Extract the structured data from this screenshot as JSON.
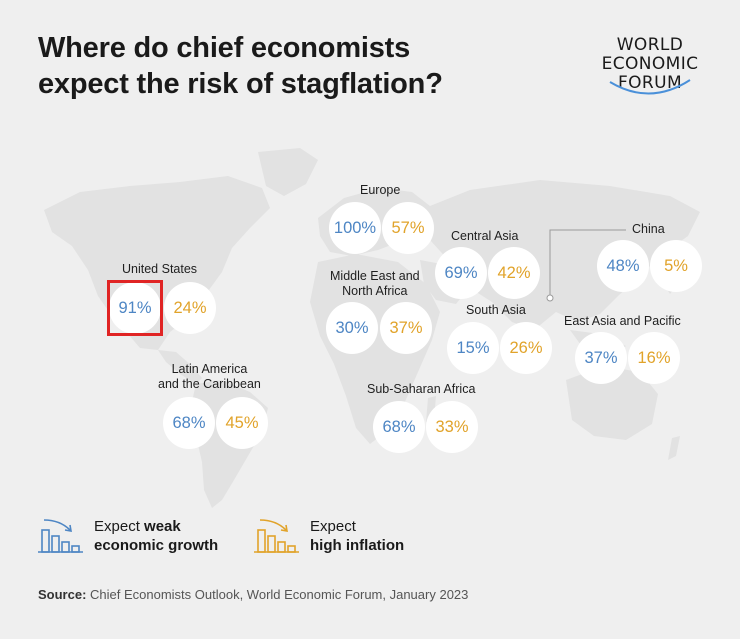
{
  "title": {
    "line1": "Where do chief economists",
    "line2": "expect the risk of stagflation?"
  },
  "logo": {
    "line1": "WORLD",
    "line2": "ECONOMIC",
    "line3": "FORUM",
    "icon": "wef-arc-logo"
  },
  "regions": [
    {
      "id": "us",
      "label_lines": [
        "United States"
      ],
      "weak_growth": "91%",
      "high_inflation": "24%",
      "highlighted": true
    },
    {
      "id": "latam",
      "label_lines": [
        "Latin America",
        "and the Caribbean"
      ],
      "weak_growth": "68%",
      "high_inflation": "45%"
    },
    {
      "id": "europe",
      "label_lines": [
        "Europe"
      ],
      "weak_growth": "100%",
      "high_inflation": "57%"
    },
    {
      "id": "mena",
      "label_lines": [
        "Middle East and",
        "North Africa"
      ],
      "weak_growth": "30%",
      "high_inflation": "37%"
    },
    {
      "id": "central-asia",
      "label_lines": [
        "Central Asia"
      ],
      "weak_growth": "69%",
      "high_inflation": "42%"
    },
    {
      "id": "south-asia",
      "label_lines": [
        "South Asia"
      ],
      "weak_growth": "15%",
      "high_inflation": "26%"
    },
    {
      "id": "ssa",
      "label_lines": [
        "Sub-Saharan Africa"
      ],
      "weak_growth": "68%",
      "high_inflation": "33%"
    },
    {
      "id": "china",
      "label_lines": [
        "China"
      ],
      "weak_growth": "48%",
      "high_inflation": "5%"
    },
    {
      "id": "eap",
      "label_lines": [
        "East Asia and Pacific"
      ],
      "weak_growth": "37%",
      "high_inflation": "16%"
    }
  ],
  "legend": {
    "weak": {
      "prefix": "Expect ",
      "bold": "weak",
      "line2": "economic growth",
      "icon": "declining-bars-icon",
      "color": "#4e86c4"
    },
    "inflation": {
      "line1": "Expect",
      "line2": "high inflation",
      "icon": "declining-bars-icon",
      "color": "#e1a32a"
    }
  },
  "source": {
    "label": "Source:",
    "text": " Chief Economists Outlook, World Economic Forum, January 2023"
  },
  "colors": {
    "weak_growth": "#4e86c4",
    "high_inflation": "#e1a32a",
    "highlight": "#e02424",
    "land": "#e2e2e2",
    "background": "#efefef"
  }
}
